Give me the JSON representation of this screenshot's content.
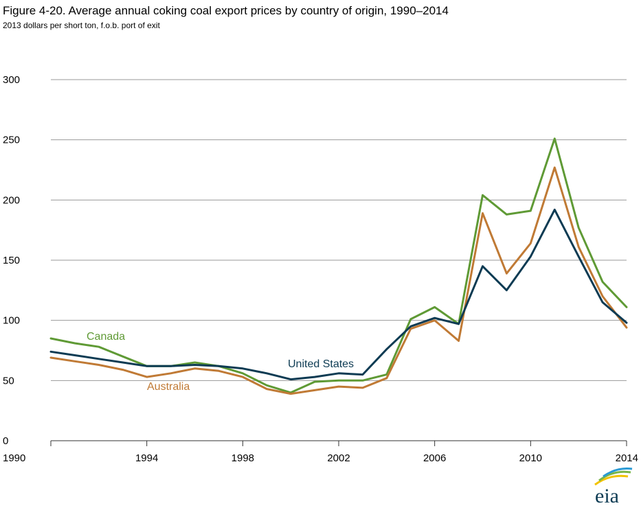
{
  "title": "Figure 4-20. Average annual coking coal export prices by country of origin, 1990–2014",
  "subtitle": "2013 dollars per short ton, f.o.b. port of exit",
  "logo_text": "eia",
  "chart_data": {
    "type": "line",
    "title": "Figure 4-20. Average annual coking coal export prices by country of origin, 1990–2014",
    "ylabel": "2013 dollars per short ton, f.o.b. port of exit",
    "xlabel": "",
    "xlim": [
      1990,
      2014
    ],
    "ylim": [
      0,
      300
    ],
    "x_ticks": [
      "1990",
      "1994",
      "1998",
      "2002",
      "2006",
      "2010",
      "2014"
    ],
    "y_ticks": [
      "0",
      "50",
      "100",
      "150",
      "200",
      "250",
      "300"
    ],
    "grid": true,
    "legend": "inline labels",
    "x": [
      1990,
      1991,
      1992,
      1993,
      1994,
      1995,
      1996,
      1997,
      1998,
      1999,
      2000,
      2001,
      2002,
      2003,
      2004,
      2005,
      2006,
      2007,
      2008,
      2009,
      2010,
      2011,
      2012,
      2013,
      2014
    ],
    "series": [
      {
        "name": "Canada",
        "color": "#5f9a35",
        "values": [
          85,
          81,
          78,
          70,
          62,
          62,
          65,
          62,
          56,
          46,
          40,
          49,
          50,
          50,
          55,
          101,
          111,
          97,
          204,
          188,
          191,
          251,
          177,
          132,
          111
        ]
      },
      {
        "name": "Australia",
        "color": "#c07a35",
        "values": [
          69,
          66,
          63,
          59,
          53,
          56,
          60,
          58,
          53,
          43,
          39,
          42,
          45,
          44,
          52,
          93,
          100,
          83,
          189,
          139,
          164,
          227,
          161,
          120,
          94
        ]
      },
      {
        "name": "United States",
        "color": "#0d3b53",
        "values": [
          74,
          71,
          68,
          65,
          62,
          62,
          63,
          62,
          60,
          56,
          51,
          53,
          56,
          55,
          76,
          95,
          102,
          97,
          145,
          125,
          153,
          192,
          153,
          115,
          98
        ]
      }
    ]
  }
}
